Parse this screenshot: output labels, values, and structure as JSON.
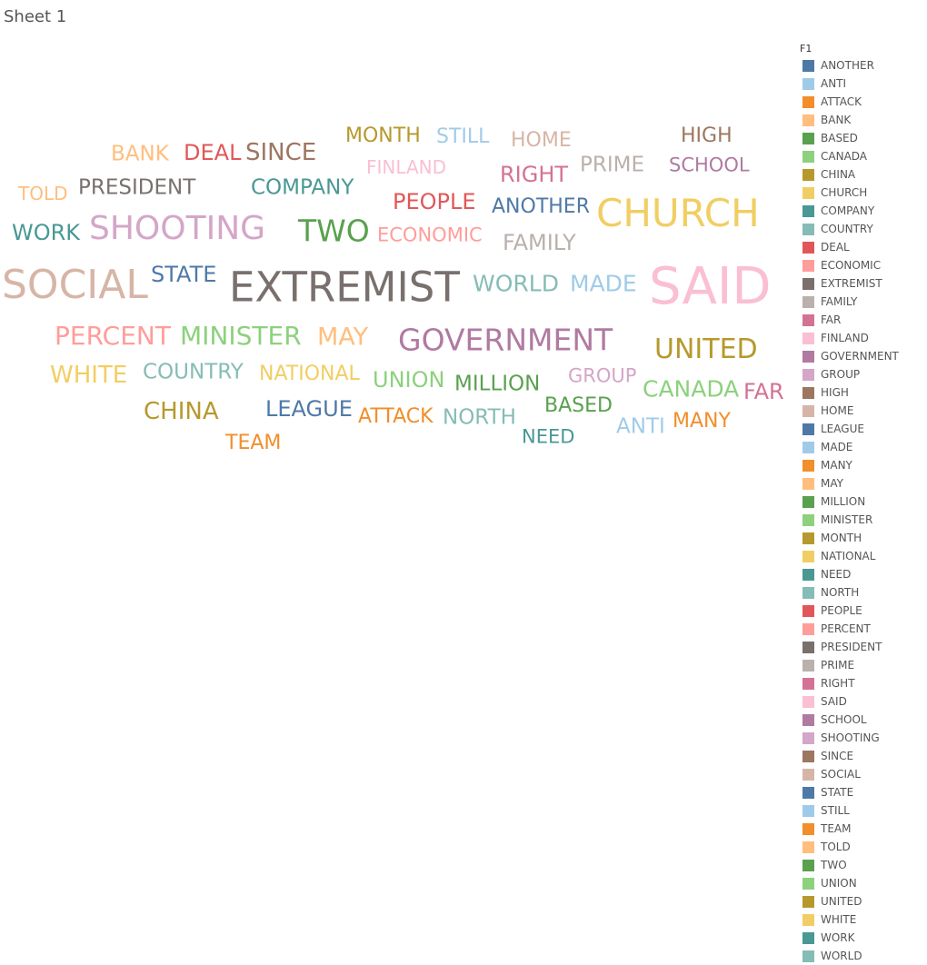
{
  "sheet_title": "Sheet 1",
  "chart_data": {
    "type": "word_cloud",
    "legend_title": "F1",
    "legend_position": "right",
    "colors": {
      "ANOTHER": "#4e79a7",
      "ANTI": "#a0cbe8",
      "ATTACK": "#f28e2b",
      "BANK": "#ffbe7d",
      "BASED": "#59a14f",
      "CANADA": "#8cd17d",
      "CHINA": "#b6992d",
      "CHURCH": "#f1ce63",
      "COMPANY": "#499894",
      "COUNTRY": "#86bcb6",
      "DEAL": "#e15759",
      "ECONOMIC": "#ff9d9a",
      "EXTREMIST": "#79706e",
      "FAMILY": "#bab0ac",
      "FAR": "#d37295",
      "FINLAND": "#fabfd2",
      "GOVERNMENT": "#b07aa1",
      "GROUP": "#d4a6c8",
      "HIGH": "#9d7660",
      "HOME": "#d7b5a6",
      "LEAGUE": "#4e79a7",
      "MADE": "#a0cbe8",
      "MANY": "#f28e2b",
      "MAY": "#ffbe7d",
      "MILLION": "#59a14f",
      "MINISTER": "#8cd17d",
      "MONTH": "#b6992d",
      "NATIONAL": "#f1ce63",
      "NEED": "#499894",
      "NORTH": "#86bcb6",
      "PEOPLE": "#e15759",
      "PERCENT": "#ff9d9a",
      "PRESIDENT": "#79706e",
      "PRIME": "#bab0ac",
      "RIGHT": "#d37295",
      "SAID": "#fabfd2",
      "SCHOOL": "#b07aa1",
      "SHOOTING": "#d4a6c8",
      "SINCE": "#9d7660",
      "SOCIAL": "#d7b5a6",
      "STATE": "#4e79a7",
      "STILL": "#a0cbe8",
      "TEAM": "#f28e2b",
      "TOLD": "#ffbe7d",
      "TWO": "#59a14f",
      "UNION": "#8cd17d",
      "UNITED": "#b6992d",
      "WHITE": "#f1ce63",
      "WORK": "#499894",
      "WORLD": "#86bcb6"
    },
    "legend": [
      "ANOTHER",
      "ANTI",
      "ATTACK",
      "BANK",
      "BASED",
      "CANADA",
      "CHINA",
      "CHURCH",
      "COMPANY",
      "COUNTRY",
      "DEAL",
      "ECONOMIC",
      "EXTREMIST",
      "FAMILY",
      "FAR",
      "FINLAND",
      "GOVERNMENT",
      "GROUP",
      "HIGH",
      "HOME",
      "LEAGUE",
      "MADE",
      "MANY",
      "MAY",
      "MILLION",
      "MINISTER",
      "MONTH",
      "NATIONAL",
      "NEED",
      "NORTH",
      "PEOPLE",
      "PERCENT",
      "PRESIDENT",
      "PRIME",
      "RIGHT",
      "SAID",
      "SCHOOL",
      "SHOOTING",
      "SINCE",
      "SOCIAL",
      "STATE",
      "STILL",
      "TEAM",
      "TOLD",
      "TWO",
      "UNION",
      "UNITED",
      "WHITE",
      "WORK",
      "WORLD"
    ],
    "words": [
      "SAID",
      "EXTREMIST",
      "CHURCH",
      "SOCIAL",
      "SHOOTING",
      "GOVERNMENT",
      "TWO",
      "UNITED",
      "PERCENT",
      "MINISTER",
      "WHITE",
      "CHINA",
      "SINCE",
      "LEAGUE",
      "PRESIDENT",
      "COMPANY",
      "DEAL",
      "PEOPLE",
      "COUNTRY",
      "NATIONAL",
      "UNION",
      "CANADA",
      "WORLD",
      "MADE",
      "FAMILY",
      "STATE",
      "RIGHT",
      "ANOTHER",
      "MAY",
      "ATTACK",
      "NORTH",
      "MILLION",
      "GROUP",
      "PRIME",
      "SCHOOL",
      "HIGH",
      "MONTH",
      "STILL",
      "HOME",
      "BANK",
      "ECONOMIC",
      "BASED",
      "ANTI",
      "MANY",
      "TEAM",
      "NEED",
      "FAR",
      "WORK",
      "FINLAND",
      "TOLD"
    ]
  }
}
